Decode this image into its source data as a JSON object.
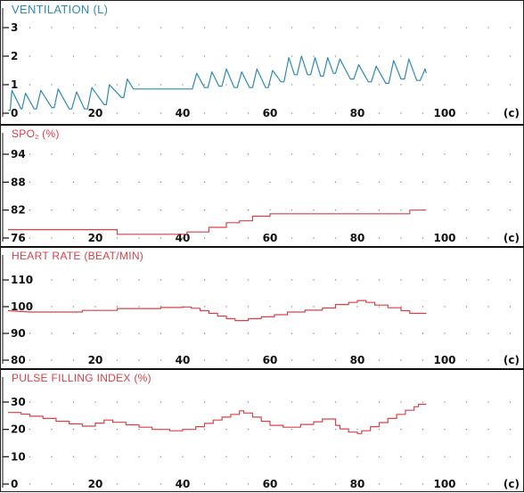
{
  "colors": {
    "ventilation": "#2e8ab5",
    "red": "#d8404a",
    "axis": "#111111",
    "grid": "#8a8a8a"
  },
  "x_axis": {
    "ticks": [
      "0",
      "20",
      "40",
      "60",
      "80",
      "100"
    ],
    "unit": "(c)"
  },
  "panels": {
    "ventilation": {
      "title": "VENTILATION (L)"
    },
    "spo2": {
      "title_prefix": "SPO",
      "title_sub": "2",
      "title_suffix": " (%)"
    },
    "heart_rate": {
      "title": "HEART RATE (BEAT/MIN)"
    },
    "pfi": {
      "title": "PULSE FILLING INDEX (%)"
    }
  },
  "chart_data": [
    {
      "type": "line",
      "title": "VENTILATION (L)",
      "xlabel": "(c)",
      "xlim": [
        0,
        100
      ],
      "ylim": [
        0,
        3.5
      ],
      "y_ticks": [
        0,
        1,
        2,
        3
      ],
      "y_tick_labels": [
        "0",
        "1",
        "2",
        "3"
      ],
      "series": [
        {
          "color": "#2e8ab5",
          "points": [
            [
              0,
              0.1
            ],
            [
              0.5,
              0.1
            ],
            [
              0.9,
              0.8
            ],
            [
              3,
              0.15
            ],
            [
              3.2,
              0.15
            ],
            [
              4,
              0.7
            ],
            [
              6,
              0.15
            ],
            [
              6.5,
              0.15
            ],
            [
              7.5,
              0.8
            ],
            [
              10,
              0.2
            ],
            [
              10.6,
              0.2
            ],
            [
              11.5,
              0.85
            ],
            [
              14,
              0.15
            ],
            [
              14.6,
              0.15
            ],
            [
              15.7,
              0.75
            ],
            [
              17.5,
              0.15
            ],
            [
              18.2,
              0.15
            ],
            [
              19.2,
              0.9
            ],
            [
              22,
              0.3
            ],
            [
              22.5,
              0.3
            ],
            [
              23.2,
              1.0
            ],
            [
              26,
              0.55
            ],
            [
              26.5,
              0.55
            ],
            [
              27.3,
              1.2
            ],
            [
              28.7,
              0.85
            ],
            [
              29.7,
              0.85
            ],
            [
              35,
              0.85
            ],
            [
              42,
              0.85
            ],
            [
              42.2,
              0.85
            ],
            [
              43.2,
              1.4
            ],
            [
              45,
              0.9
            ],
            [
              45.8,
              0.9
            ],
            [
              46.7,
              1.45
            ],
            [
              48.3,
              0.95
            ],
            [
              49,
              0.95
            ],
            [
              50,
              1.55
            ],
            [
              51.8,
              0.9
            ],
            [
              52.5,
              0.9
            ],
            [
              53.5,
              1.45
            ],
            [
              55.3,
              0.9
            ],
            [
              56,
              0.9
            ],
            [
              57,
              1.55
            ],
            [
              59,
              0.9
            ],
            [
              59.6,
              0.9
            ],
            [
              60.6,
              1.5
            ],
            [
              62.5,
              1.1
            ],
            [
              63.2,
              1.1
            ],
            [
              64.3,
              1.95
            ],
            [
              65.6,
              1.35
            ],
            [
              66.2,
              1.35
            ],
            [
              67.2,
              2.0
            ],
            [
              68.6,
              1.35
            ],
            [
              69.3,
              1.35
            ],
            [
              70.3,
              1.95
            ],
            [
              71.6,
              1.3
            ],
            [
              72.2,
              1.3
            ],
            [
              73.2,
              1.95
            ],
            [
              74.5,
              1.4
            ],
            [
              75,
              1.4
            ],
            [
              76,
              1.9
            ],
            [
              78.4,
              1.2
            ],
            [
              79.2,
              1.2
            ],
            [
              80.3,
              1.7
            ],
            [
              82.5,
              1.1
            ],
            [
              83.2,
              1.1
            ],
            [
              84.3,
              1.65
            ],
            [
              86.5,
              1.05
            ],
            [
              87.2,
              1.05
            ],
            [
              88.3,
              1.85
            ],
            [
              90,
              1.2
            ],
            [
              90.8,
              1.2
            ],
            [
              91.8,
              1.9
            ],
            [
              93.6,
              1.15
            ],
            [
              94.4,
              1.15
            ],
            [
              95.5,
              1.55
            ],
            [
              95.8,
              1.4
            ]
          ]
        }
      ]
    },
    {
      "type": "line",
      "title": "SpO2 (%)",
      "xlabel": "(c)",
      "xlim": [
        0,
        100
      ],
      "ylim": [
        76,
        98
      ],
      "y_ticks": [
        76,
        82,
        88,
        94
      ],
      "y_tick_labels": [
        "76",
        "82",
        "88",
        "94"
      ],
      "series": [
        {
          "color": "#d8404a",
          "step": true,
          "points": [
            [
              0,
              77.8
            ],
            [
              25,
              77.8
            ],
            [
              25,
              76.8
            ],
            [
              41,
              76.8
            ],
            [
              41,
              77.3
            ],
            [
              46,
              77.3
            ],
            [
              46,
              78.3
            ],
            [
              50,
              78.3
            ],
            [
              50,
              79.3
            ],
            [
              53,
              79.3
            ],
            [
              53,
              79.7
            ],
            [
              56,
              79.7
            ],
            [
              56,
              80.7
            ],
            [
              60,
              80.7
            ],
            [
              60,
              81.2
            ],
            [
              66,
              81.2
            ],
            [
              72,
              81.2
            ],
            [
              80,
              81.2
            ],
            [
              92,
              81.2
            ],
            [
              92,
              82.0
            ],
            [
              95.8,
              82.0
            ]
          ]
        }
      ]
    },
    {
      "type": "line",
      "title": "HEART RATE (BEAT/MIN)",
      "xlabel": "(c)",
      "xlim": [
        0,
        100
      ],
      "ylim": [
        80,
        120
      ],
      "y_ticks": [
        80,
        90,
        100,
        110
      ],
      "y_tick_labels": [
        "80",
        "90",
        "100",
        "110"
      ],
      "series": [
        {
          "color": "#d8404a",
          "step": true,
          "points": [
            [
              0,
              98.5
            ],
            [
              5,
              98
            ],
            [
              17,
              98
            ],
            [
              17,
              98.6
            ],
            [
              25,
              98.6
            ],
            [
              25,
              99.3
            ],
            [
              35,
              99.3
            ],
            [
              35,
              99.7
            ],
            [
              40,
              99.7
            ],
            [
              40,
              99.9
            ],
            [
              42,
              99.9
            ],
            [
              42,
              99.4
            ],
            [
              44,
              99.4
            ],
            [
              44,
              98.5
            ],
            [
              46,
              98.5
            ],
            [
              46,
              97.5
            ],
            [
              48,
              97.5
            ],
            [
              48,
              96.5
            ],
            [
              50,
              96.5
            ],
            [
              50,
              95.5
            ],
            [
              52,
              95.5
            ],
            [
              52,
              94.8
            ],
            [
              55,
              94.8
            ],
            [
              55,
              95.5
            ],
            [
              58,
              95.5
            ],
            [
              58,
              96.2
            ],
            [
              61,
              96.2
            ],
            [
              61,
              97.0
            ],
            [
              64,
              97.0
            ],
            [
              64,
              98.0
            ],
            [
              68,
              98.0
            ],
            [
              68,
              98.7
            ],
            [
              72,
              98.7
            ],
            [
              72,
              99.5
            ],
            [
              75,
              99.5
            ],
            [
              75,
              100.8
            ],
            [
              78,
              100.8
            ],
            [
              78,
              101.6
            ],
            [
              80,
              101.6
            ],
            [
              80,
              102.3
            ],
            [
              82,
              102.3
            ],
            [
              82,
              101.6
            ],
            [
              84,
              101.6
            ],
            [
              84,
              100.6
            ],
            [
              87,
              100.6
            ],
            [
              87,
              99.6
            ],
            [
              90,
              99.6
            ],
            [
              90,
              98.5
            ],
            [
              92,
              98.5
            ],
            [
              92,
              97.5
            ],
            [
              95.8,
              97.5
            ]
          ]
        }
      ]
    },
    {
      "type": "line",
      "title": "PULSE FILLING INDEX (%)",
      "xlabel": "(c)",
      "xlim": [
        0,
        100
      ],
      "ylim": [
        0,
        35
      ],
      "y_ticks": [
        0,
        10,
        20,
        30
      ],
      "y_tick_labels": [
        "0",
        "10",
        "20",
        "30"
      ],
      "series": [
        {
          "color": "#d8404a",
          "step": true,
          "points": [
            [
              0,
              26.2
            ],
            [
              3,
              26.2
            ],
            [
              3,
              25.6
            ],
            [
              5,
              25.6
            ],
            [
              5,
              24.8
            ],
            [
              8,
              24.8
            ],
            [
              8,
              24.0
            ],
            [
              11,
              24.0
            ],
            [
              11,
              23.0
            ],
            [
              14,
              23.0
            ],
            [
              14,
              22.0
            ],
            [
              17,
              22.0
            ],
            [
              17,
              21.2
            ],
            [
              20,
              21.2
            ],
            [
              20,
              22.3
            ],
            [
              22,
              22.3
            ],
            [
              22,
              23.4
            ],
            [
              24,
              23.4
            ],
            [
              24,
              22.6
            ],
            [
              27,
              22.6
            ],
            [
              27,
              21.7
            ],
            [
              30,
              21.7
            ],
            [
              30,
              20.8
            ],
            [
              33,
              20.8
            ],
            [
              33,
              20.0
            ],
            [
              37,
              20.0
            ],
            [
              37,
              19.5
            ],
            [
              40,
              19.5
            ],
            [
              40,
              20.0
            ],
            [
              43,
              20.0
            ],
            [
              43,
              21.0
            ],
            [
              45,
              21.0
            ],
            [
              45,
              22.2
            ],
            [
              47,
              22.2
            ],
            [
              47,
              23.4
            ],
            [
              49,
              23.4
            ],
            [
              49,
              24.5
            ],
            [
              51,
              24.5
            ],
            [
              51,
              25.5
            ],
            [
              53,
              25.5
            ],
            [
              53,
              26.8
            ],
            [
              54,
              26.8
            ],
            [
              54,
              26.0
            ],
            [
              56,
              26.0
            ],
            [
              56,
              24.5
            ],
            [
              58,
              24.5
            ],
            [
              58,
              23.0
            ],
            [
              60,
              23.0
            ],
            [
              60,
              21.5
            ],
            [
              63,
              21.5
            ],
            [
              63,
              20.8
            ],
            [
              67,
              20.8
            ],
            [
              67,
              21.8
            ],
            [
              70,
              21.8
            ],
            [
              70,
              22.8
            ],
            [
              72,
              22.8
            ],
            [
              72,
              23.8
            ],
            [
              75,
              23.8
            ],
            [
              75,
              21.5
            ],
            [
              76,
              21.5
            ],
            [
              76,
              20.2
            ],
            [
              78,
              20.2
            ],
            [
              78,
              19.0
            ],
            [
              80,
              19.0
            ],
            [
              80,
              18.5
            ],
            [
              81,
              18.5
            ],
            [
              81,
              19.5
            ],
            [
              83,
              19.5
            ],
            [
              83,
              21.0
            ],
            [
              85,
              21.0
            ],
            [
              85,
              22.5
            ],
            [
              87,
              22.5
            ],
            [
              87,
              24.0
            ],
            [
              89,
              24.0
            ],
            [
              89,
              25.5
            ],
            [
              91,
              25.5
            ],
            [
              91,
              27.0
            ],
            [
              93,
              27.0
            ],
            [
              93,
              28.3
            ],
            [
              94,
              28.3
            ],
            [
              94,
              29.2
            ],
            [
              95.8,
              29.2
            ]
          ]
        }
      ]
    }
  ]
}
